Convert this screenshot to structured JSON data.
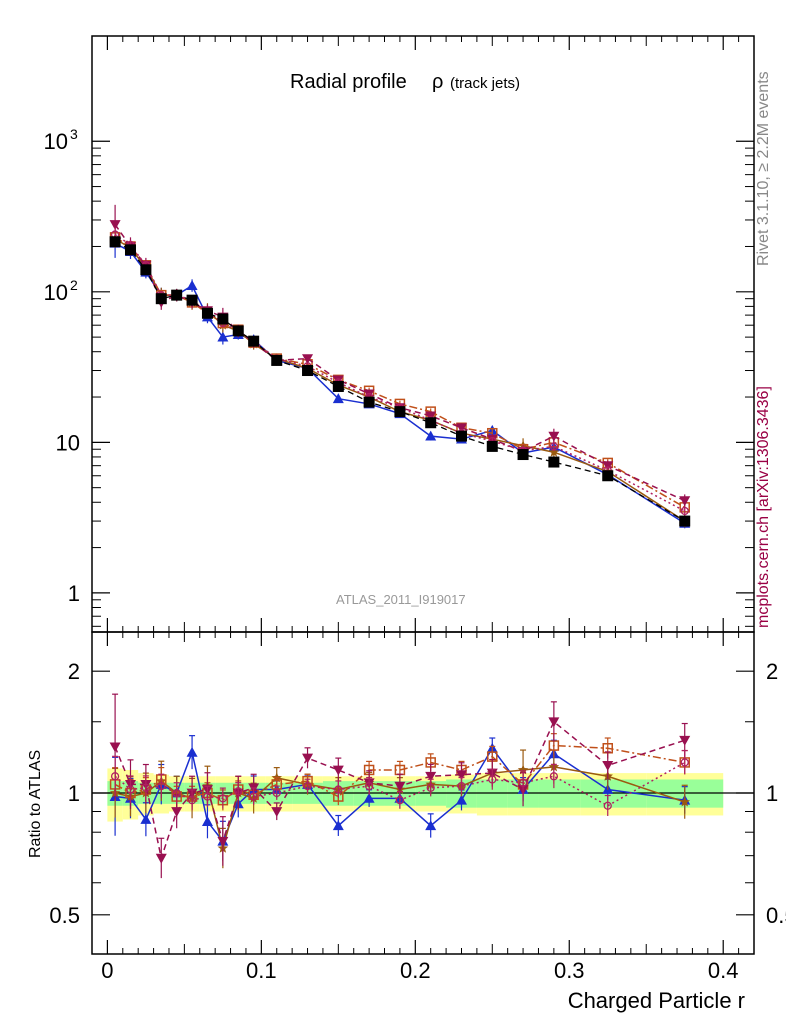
{
  "chart_data": {
    "type": "line",
    "title": "Radial profile",
    "title_symbol": "ρ",
    "title_suffix": "(track jets)",
    "analysis_id": "ATLAS_2011_I919017",
    "side_rivet": "Rivet 3.1.10, ≥ 2.2M events",
    "side_mcplots": "mcplots.cern.ch [arXiv:1306.3436]",
    "xlabel": "Charged Particle r",
    "ylabel_ratio": "Ratio to ATLAS",
    "xlim": [
      -0.01,
      0.42
    ],
    "ylim_main": [
      0.55,
      5000
    ],
    "ylim_ratio": [
      0.4,
      2.5
    ],
    "x_ticks": [
      "0",
      "0.1",
      "0.2",
      "0.3",
      "0.4"
    ],
    "x_tick_values": [
      0,
      0.1,
      0.2,
      0.3,
      0.4
    ],
    "y_ticks_main": [
      {
        "value": 1,
        "base": "1",
        "exp": ""
      },
      {
        "value": 10,
        "base": "10",
        "exp": ""
      },
      {
        "value": 100,
        "base": "10",
        "exp": "2"
      },
      {
        "value": 1000,
        "base": "10",
        "exp": "3"
      }
    ],
    "y_ticks_ratio": [
      "0.5",
      "1",
      "2"
    ],
    "y_tick_values_ratio": [
      0.5,
      1,
      2
    ],
    "x": [
      0.005,
      0.015,
      0.025,
      0.035,
      0.045,
      0.055,
      0.065,
      0.075,
      0.085,
      0.095,
      0.11,
      0.13,
      0.15,
      0.17,
      0.19,
      0.21,
      0.23,
      0.25,
      0.27,
      0.29,
      0.325,
      0.375
    ],
    "data": {
      "name": "ATLAS",
      "values": [
        215,
        190,
        140,
        90,
        95,
        88,
        72,
        66,
        55,
        47,
        35,
        30,
        23.5,
        18.5,
        16,
        13.5,
        11,
        9.4,
        8.3,
        7.4,
        6.0,
        3.0
      ],
      "color": "#000000"
    },
    "data_band": {
      "green": [
        0.07,
        0.07,
        0.06,
        0.06,
        0.06,
        0.06,
        0.06,
        0.06,
        0.06,
        0.06,
        0.06,
        0.06,
        0.07,
        0.07,
        0.07,
        0.07,
        0.08,
        0.08,
        0.08,
        0.08,
        0.08,
        0.08
      ],
      "yellow": [
        0.15,
        0.14,
        0.12,
        0.11,
        0.1,
        0.1,
        0.1,
        0.1,
        0.1,
        0.1,
        0.1,
        0.1,
        0.1,
        0.1,
        0.1,
        0.1,
        0.11,
        0.12,
        0.12,
        0.12,
        0.12,
        0.12
      ]
    },
    "series": [
      {
        "name": "MC blue triangles",
        "color": "#1a2fd0",
        "marker": "triangle-up",
        "line": "solid",
        "values": [
          210,
          185,
          135,
          95,
          95,
          110,
          68,
          50,
          52,
          48,
          35,
          31,
          19.5,
          18,
          15.5,
          11,
          10.5,
          12,
          8.5,
          9.3,
          6.1,
          2.9
        ],
        "ratio": [
          0.98,
          0.97,
          0.86,
          1.05,
          1.0,
          1.26,
          0.85,
          0.76,
          0.94,
          1.02,
          1.02,
          1.05,
          0.83,
          0.97,
          0.97,
          0.83,
          0.96,
          1.29,
          1.02,
          1.25,
          1.02,
          0.96
        ],
        "err": [
          0.25,
          0.12,
          0.1,
          0.12,
          0.1,
          0.1,
          0.1,
          0.12,
          0.08,
          0.08,
          0.05,
          0.05,
          0.06,
          0.05,
          0.06,
          0.07,
          0.06,
          0.06,
          0.07,
          0.08,
          0.06,
          0.08
        ]
      },
      {
        "name": "MC brown stars",
        "color": "#9a5a10",
        "marker": "star",
        "line": "solid",
        "values": [
          225,
          195,
          145,
          95,
          95,
          85,
          75,
          60,
          55,
          45,
          36,
          31,
          24,
          20,
          16,
          14,
          11.5,
          10.5,
          9.5,
          8.6,
          6.4,
          3.0
        ],
        "ratio": [
          1.0,
          0.98,
          1.0,
          1.07,
          1.0,
          0.97,
          1.04,
          0.73,
          1.0,
          0.97,
          1.09,
          1.05,
          1.02,
          1.06,
          1.02,
          1.05,
          1.04,
          1.12,
          1.14,
          1.16,
          1.1,
          0.95
        ],
        "err": [
          0.15,
          0.12,
          0.12,
          0.12,
          0.1,
          0.12,
          0.12,
          0.12,
          0.1,
          0.09,
          0.06,
          0.06,
          0.07,
          0.06,
          0.07,
          0.06,
          0.06,
          0.08,
          0.12,
          0.1,
          0.08,
          0.1
        ]
      },
      {
        "name": "MC orange open squares",
        "color": "#c0501a",
        "marker": "square-open",
        "line": "dashdot",
        "values": [
          230,
          200,
          150,
          95,
          95,
          85,
          72,
          62,
          56,
          46,
          36,
          33,
          26,
          22,
          18,
          16,
          12.5,
          11.5,
          9,
          10,
          7.3,
          3.7
        ],
        "ratio": [
          1.05,
          1.0,
          1.02,
          1.08,
          0.98,
          0.98,
          1.0,
          0.96,
          1.02,
          0.99,
          1.05,
          1.07,
          0.98,
          1.14,
          1.14,
          1.19,
          1.14,
          1.23,
          1.05,
          1.31,
          1.29,
          1.19
        ],
        "err": [
          0.1,
          0.08,
          0.07,
          0.07,
          0.06,
          0.06,
          0.06,
          0.06,
          0.05,
          0.05,
          0.04,
          0.04,
          0.05,
          0.05,
          0.05,
          0.05,
          0.05,
          0.06,
          0.07,
          0.07,
          0.06,
          0.07
        ]
      },
      {
        "name": "MC magenta down triangles",
        "color": "#991050",
        "marker": "triangle-down",
        "line": "dashed",
        "values": [
          280,
          200,
          150,
          85,
          95,
          85,
          75,
          68,
          55,
          46,
          35,
          36,
          26,
          21,
          17,
          15,
          12.5,
          10.5,
          8.7,
          11,
          7.0,
          4.1
        ],
        "ratio": [
          1.3,
          1.05,
          1.05,
          0.69,
          0.9,
          1.0,
          1.02,
          0.76,
          1.0,
          1.03,
          0.9,
          1.22,
          1.14,
          1.06,
          1.04,
          1.1,
          1.11,
          1.12,
          1.02,
          1.5,
          1.17,
          1.35
        ],
        "err": [
          0.35,
          0.15,
          0.12,
          0.12,
          0.1,
          0.1,
          0.1,
          0.15,
          0.1,
          0.08,
          0.05,
          0.06,
          0.07,
          0.07,
          0.07,
          0.07,
          0.07,
          0.08,
          0.1,
          0.12,
          0.08,
          0.1
        ]
      },
      {
        "name": "MC purple open circles",
        "color": "#b02060",
        "marker": "circle-open",
        "line": "dotted",
        "values": [
          240,
          205,
          150,
          95,
          95,
          88,
          74,
          62,
          55,
          47,
          36,
          32,
          25,
          20,
          17,
          14,
          11.5,
          10.2,
          8.8,
          9.4,
          6.5,
          3.5
        ],
        "ratio": [
          1.1,
          1.02,
          1.03,
          1.04,
          1.0,
          0.96,
          0.98,
          0.97,
          1.01,
          0.98,
          1.0,
          1.04,
          1.02,
          1.04,
          0.96,
          1.03,
          1.04,
          1.08,
          1.06,
          1.1,
          0.93,
          1.19
        ],
        "err": [
          0.12,
          0.08,
          0.07,
          0.07,
          0.06,
          0.06,
          0.06,
          0.06,
          0.05,
          0.05,
          0.04,
          0.04,
          0.05,
          0.05,
          0.05,
          0.05,
          0.05,
          0.06,
          0.07,
          0.07,
          0.06,
          0.07
        ]
      }
    ]
  }
}
